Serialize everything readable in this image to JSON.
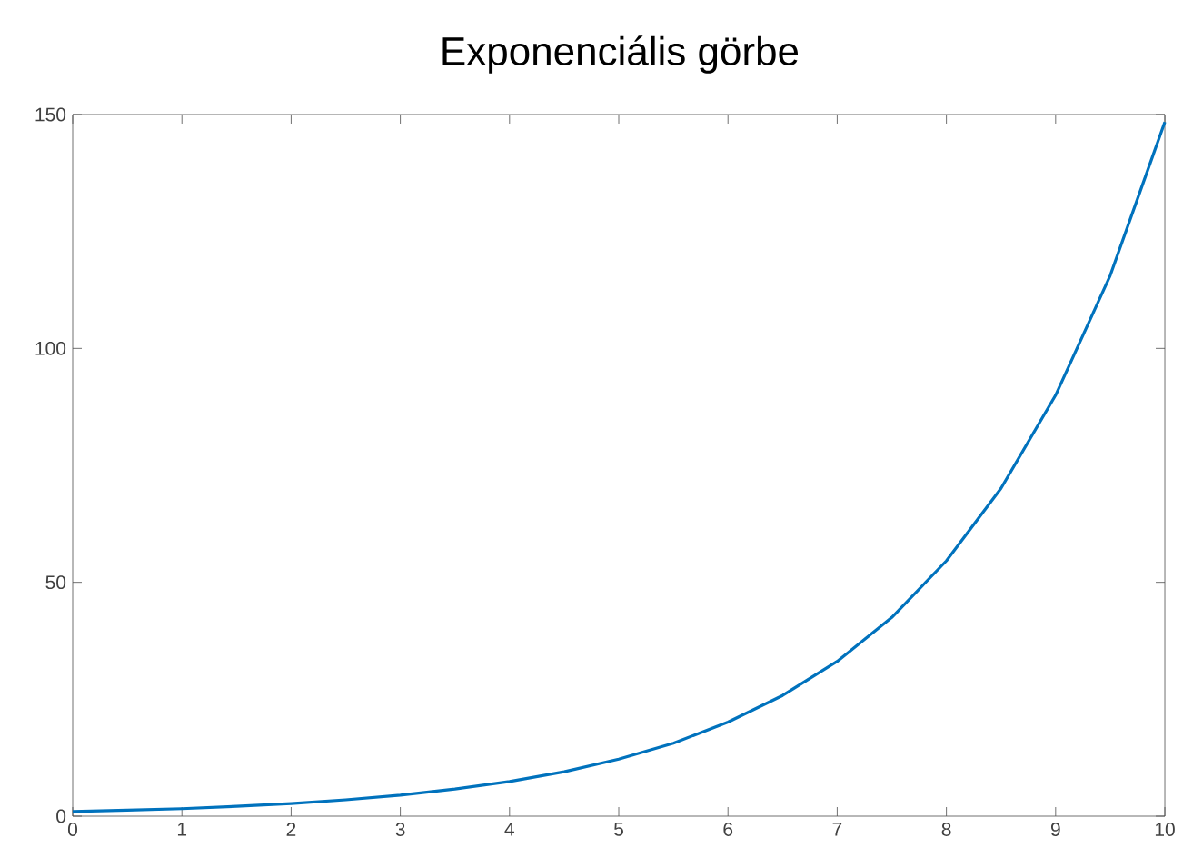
{
  "chart_data": {
    "type": "line",
    "title": "Exponenciális görbe",
    "x": [
      0,
      0.5,
      1,
      1.5,
      2,
      2.5,
      3,
      3.5,
      4,
      4.5,
      5,
      5.5,
      6,
      6.5,
      7,
      7.5,
      8,
      8.5,
      9,
      9.5,
      10
    ],
    "series": [
      {
        "color": "#0072bd",
        "values": [
          1,
          1.3,
          1.6,
          2.1,
          2.7,
          3.5,
          4.5,
          5.8,
          7.4,
          9.5,
          12.2,
          15.6,
          20.1,
          25.8,
          33.1,
          42.5,
          54.6,
          70.1,
          90,
          115.6,
          148.4
        ]
      }
    ],
    "xlim": [
      0,
      10
    ],
    "ylim": [
      0,
      150
    ],
    "xticks": [
      0,
      1,
      2,
      3,
      4,
      5,
      6,
      7,
      8,
      9,
      10
    ],
    "yticks": [
      0,
      50,
      100,
      150
    ],
    "grid": false
  }
}
